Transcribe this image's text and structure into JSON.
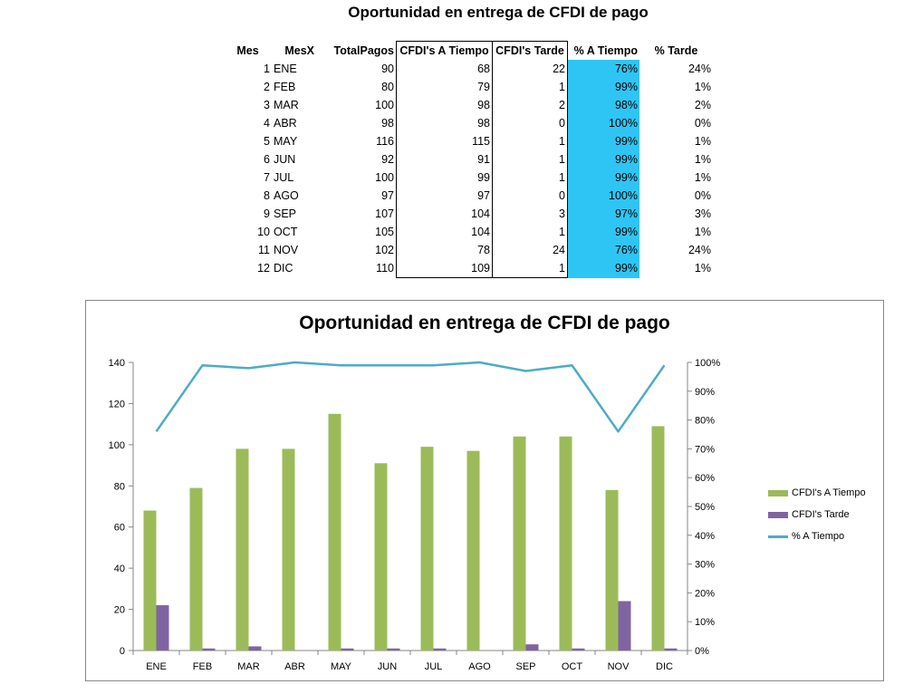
{
  "sheet": {
    "title": "Oportunidad en entrega de CFDI de pago",
    "headers": {
      "mes": "Mes",
      "mesx": "MesX",
      "total": "TotalPagos",
      "a_tiempo": "CFDI's A Tiempo",
      "tarde": "CFDI's Tarde",
      "pct_a_tiempo": "% A Tiempo",
      "pct_tarde": "% Tarde"
    },
    "rows": [
      {
        "mes": "1",
        "mesx": "ENE",
        "total": "90",
        "a_tiempo": "68",
        "tarde": "22",
        "pct_a_tiempo": "76%",
        "pct_tarde": "24%"
      },
      {
        "mes": "2",
        "mesx": "FEB",
        "total": "80",
        "a_tiempo": "79",
        "tarde": "1",
        "pct_a_tiempo": "99%",
        "pct_tarde": "1%"
      },
      {
        "mes": "3",
        "mesx": "MAR",
        "total": "100",
        "a_tiempo": "98",
        "tarde": "2",
        "pct_a_tiempo": "98%",
        "pct_tarde": "2%"
      },
      {
        "mes": "4",
        "mesx": "ABR",
        "total": "98",
        "a_tiempo": "98",
        "tarde": "0",
        "pct_a_tiempo": "100%",
        "pct_tarde": "0%"
      },
      {
        "mes": "5",
        "mesx": "MAY",
        "total": "116",
        "a_tiempo": "115",
        "tarde": "1",
        "pct_a_tiempo": "99%",
        "pct_tarde": "1%"
      },
      {
        "mes": "6",
        "mesx": "JUN",
        "total": "92",
        "a_tiempo": "91",
        "tarde": "1",
        "pct_a_tiempo": "99%",
        "pct_tarde": "1%"
      },
      {
        "mes": "7",
        "mesx": "JUL",
        "total": "100",
        "a_tiempo": "99",
        "tarde": "1",
        "pct_a_tiempo": "99%",
        "pct_tarde": "1%"
      },
      {
        "mes": "8",
        "mesx": "AGO",
        "total": "97",
        "a_tiempo": "97",
        "tarde": "0",
        "pct_a_tiempo": "100%",
        "pct_tarde": "0%"
      },
      {
        "mes": "9",
        "mesx": "SEP",
        "total": "107",
        "a_tiempo": "104",
        "tarde": "3",
        "pct_a_tiempo": "97%",
        "pct_tarde": "3%"
      },
      {
        "mes": "10",
        "mesx": "OCT",
        "total": "105",
        "a_tiempo": "104",
        "tarde": "1",
        "pct_a_tiempo": "99%",
        "pct_tarde": "1%"
      },
      {
        "mes": "11",
        "mesx": "NOV",
        "total": "102",
        "a_tiempo": "78",
        "tarde": "24",
        "pct_a_tiempo": "76%",
        "pct_tarde": "24%"
      },
      {
        "mes": "12",
        "mesx": "DIC",
        "total": "110",
        "a_tiempo": "109",
        "tarde": "1",
        "pct_a_tiempo": "99%",
        "pct_tarde": "1%"
      }
    ],
    "highlight_color": "#2ec5f5"
  },
  "chart_data": {
    "type": "bar",
    "title": "Oportunidad en entrega de CFDI de pago",
    "categories": [
      "ENE",
      "FEB",
      "MAR",
      "ABR",
      "MAY",
      "JUN",
      "JUL",
      "AGO",
      "SEP",
      "OCT",
      "NOV",
      "DIC"
    ],
    "series": [
      {
        "name": "CFDI's A Tiempo",
        "type": "bar",
        "axis": "left",
        "color": "#9bbb59",
        "values": [
          68,
          79,
          98,
          98,
          115,
          91,
          99,
          97,
          104,
          104,
          78,
          109
        ]
      },
      {
        "name": "CFDI's Tarde",
        "type": "bar",
        "axis": "left",
        "color": "#8064a2",
        "values": [
          22,
          1,
          2,
          0,
          1,
          1,
          1,
          0,
          3,
          1,
          24,
          1
        ]
      },
      {
        "name": "% A Tiempo",
        "type": "line",
        "axis": "right",
        "color": "#4bacc6",
        "values": [
          0.76,
          0.99,
          0.98,
          1.0,
          0.99,
          0.99,
          0.99,
          1.0,
          0.97,
          0.99,
          0.76,
          0.99
        ]
      }
    ],
    "ylim": [
      0,
      140
    ],
    "yticks": [
      "0",
      "20",
      "40",
      "60",
      "80",
      "100",
      "120",
      "140"
    ],
    "y2lim": [
      0,
      1
    ],
    "y2ticks": [
      "0%",
      "10%",
      "20%",
      "30%",
      "40%",
      "50%",
      "60%",
      "70%",
      "80%",
      "90%",
      "100%"
    ],
    "legend_position": "right",
    "grid": false
  }
}
